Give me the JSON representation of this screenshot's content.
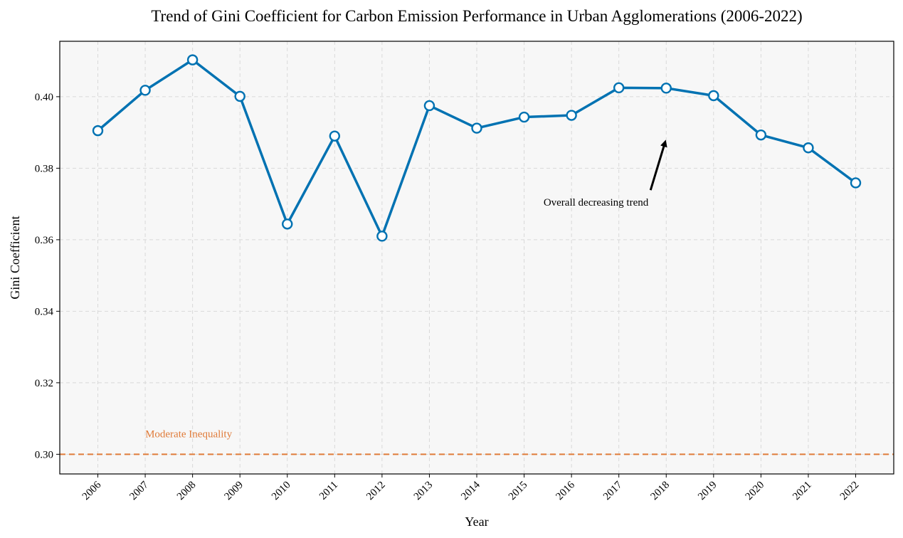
{
  "chart_data": {
    "type": "line",
    "title": "Trend of Gini Coefficient for Carbon Emission Performance in Urban Agglomerations (2006-2022)",
    "xlabel": "Year",
    "ylabel": "Gini Coefficient",
    "x": [
      "2006",
      "2007",
      "2008",
      "2009",
      "2010",
      "2011",
      "2012",
      "2013",
      "2014",
      "2015",
      "2016",
      "2017",
      "2018",
      "2019",
      "2020",
      "2021",
      "2022"
    ],
    "series": [
      {
        "name": "Gini Coefficient",
        "values": [
          0.3905,
          0.4018,
          0.4103,
          0.4001,
          0.3644,
          0.389,
          0.361,
          0.3975,
          0.3912,
          0.3943,
          0.3948,
          0.4025,
          0.4024,
          0.4003,
          0.3893,
          0.3857,
          0.3759
        ],
        "color": "#0072b2"
      }
    ],
    "ylim": [
      0.2945,
      0.4155
    ],
    "yticks": [
      0.3,
      0.32,
      0.34,
      0.36,
      0.38,
      0.4
    ],
    "ytick_labels": [
      "0.30",
      "0.32",
      "0.34",
      "0.36",
      "0.38",
      "0.40"
    ],
    "reference_line": {
      "y": 0.3,
      "label": "Moderate Inequality",
      "color": "#e07b39"
    },
    "annotation": {
      "text": "Overall decreasing trend",
      "point_x": "2018",
      "point_y": 0.389
    },
    "grid": true,
    "background_color": "#f7f7f7"
  }
}
